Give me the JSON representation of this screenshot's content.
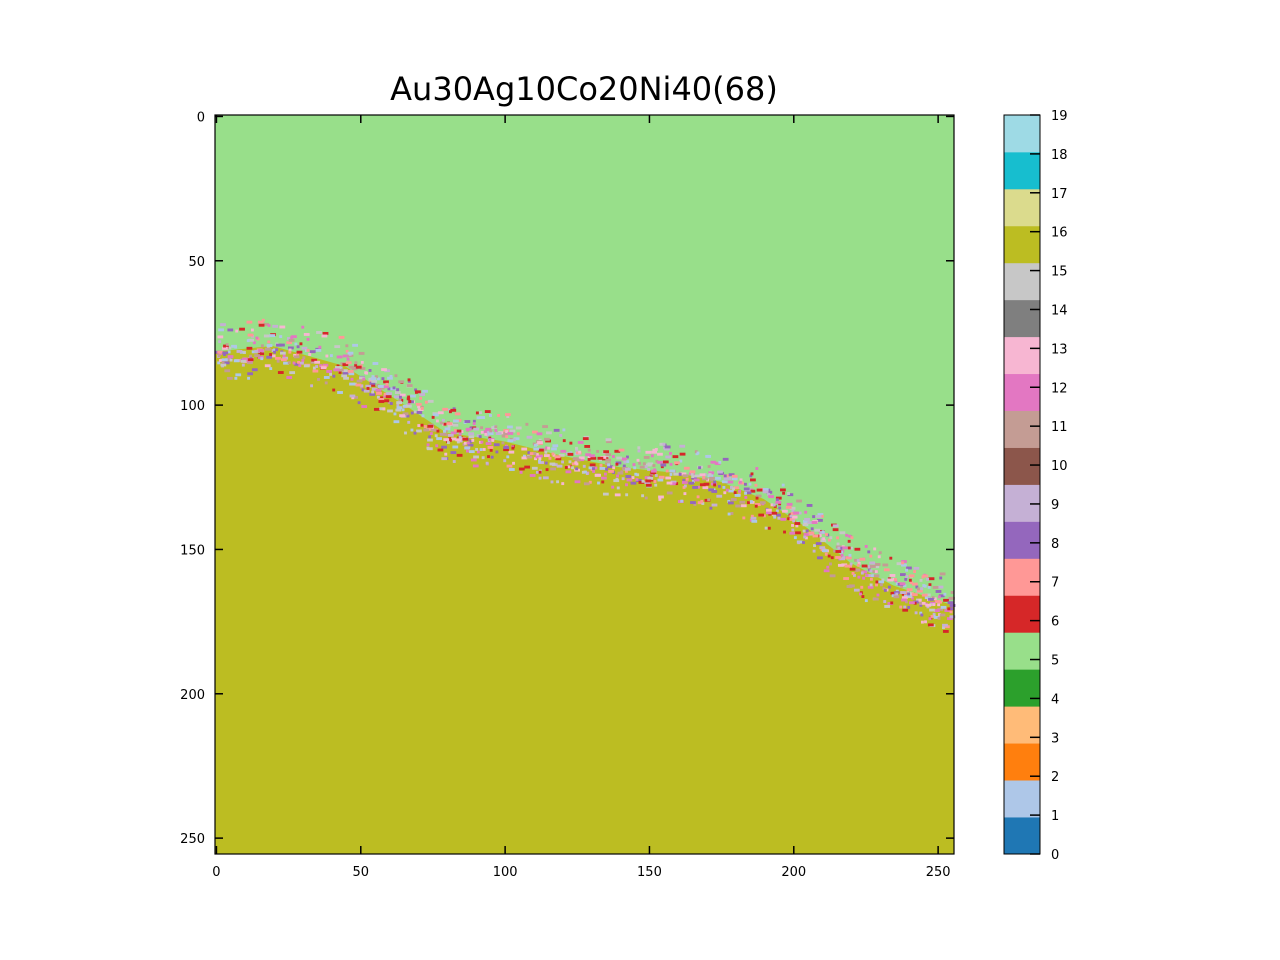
{
  "chart_data": {
    "type": "heatmap",
    "title": "Au30Ag10Co20Ni40(68)",
    "xlabel": "",
    "ylabel": "",
    "grid": 256,
    "xlim": [
      0,
      256
    ],
    "ylim": [
      256,
      0
    ],
    "x_ticks": [
      0,
      50,
      100,
      150,
      200,
      250
    ],
    "y_ticks": [
      0,
      50,
      100,
      150,
      200,
      250
    ],
    "regions": [
      {
        "class": 5,
        "description_color": "#98df8a",
        "position": "upper"
      },
      {
        "class": 16,
        "description_color": "#bcbd22",
        "position": "lower"
      }
    ],
    "boundary": [
      {
        "x": 0,
        "y": 82
      },
      {
        "x": 20,
        "y": 80
      },
      {
        "x": 45,
        "y": 87
      },
      {
        "x": 65,
        "y": 100
      },
      {
        "x": 80,
        "y": 110
      },
      {
        "x": 100,
        "y": 113
      },
      {
        "x": 120,
        "y": 118
      },
      {
        "x": 140,
        "y": 122
      },
      {
        "x": 160,
        "y": 124
      },
      {
        "x": 175,
        "y": 127
      },
      {
        "x": 190,
        "y": 133
      },
      {
        "x": 205,
        "y": 143
      },
      {
        "x": 220,
        "y": 155
      },
      {
        "x": 235,
        "y": 163
      },
      {
        "x": 256,
        "y": 170
      }
    ],
    "colorbar": {
      "min": 0,
      "max": 19,
      "ticks": [
        "0",
        "1",
        "2",
        "3",
        "4",
        "5",
        "6",
        "7",
        "8",
        "9",
        "10",
        "11",
        "12",
        "13",
        "14",
        "15",
        "16",
        "17",
        "18",
        "19"
      ],
      "colors": [
        "#1f77b4",
        "#aec7e8",
        "#ff7f0e",
        "#ffbb78",
        "#2ca02c",
        "#98df8a",
        "#d62728",
        "#ff9896",
        "#9467bd",
        "#c5b0d5",
        "#8c564b",
        "#c49c94",
        "#e377c2",
        "#f7b6d2",
        "#7f7f7f",
        "#c7c7c7",
        "#bcbd22",
        "#dbdb8d",
        "#17becf",
        "#9edae5"
      ]
    }
  }
}
